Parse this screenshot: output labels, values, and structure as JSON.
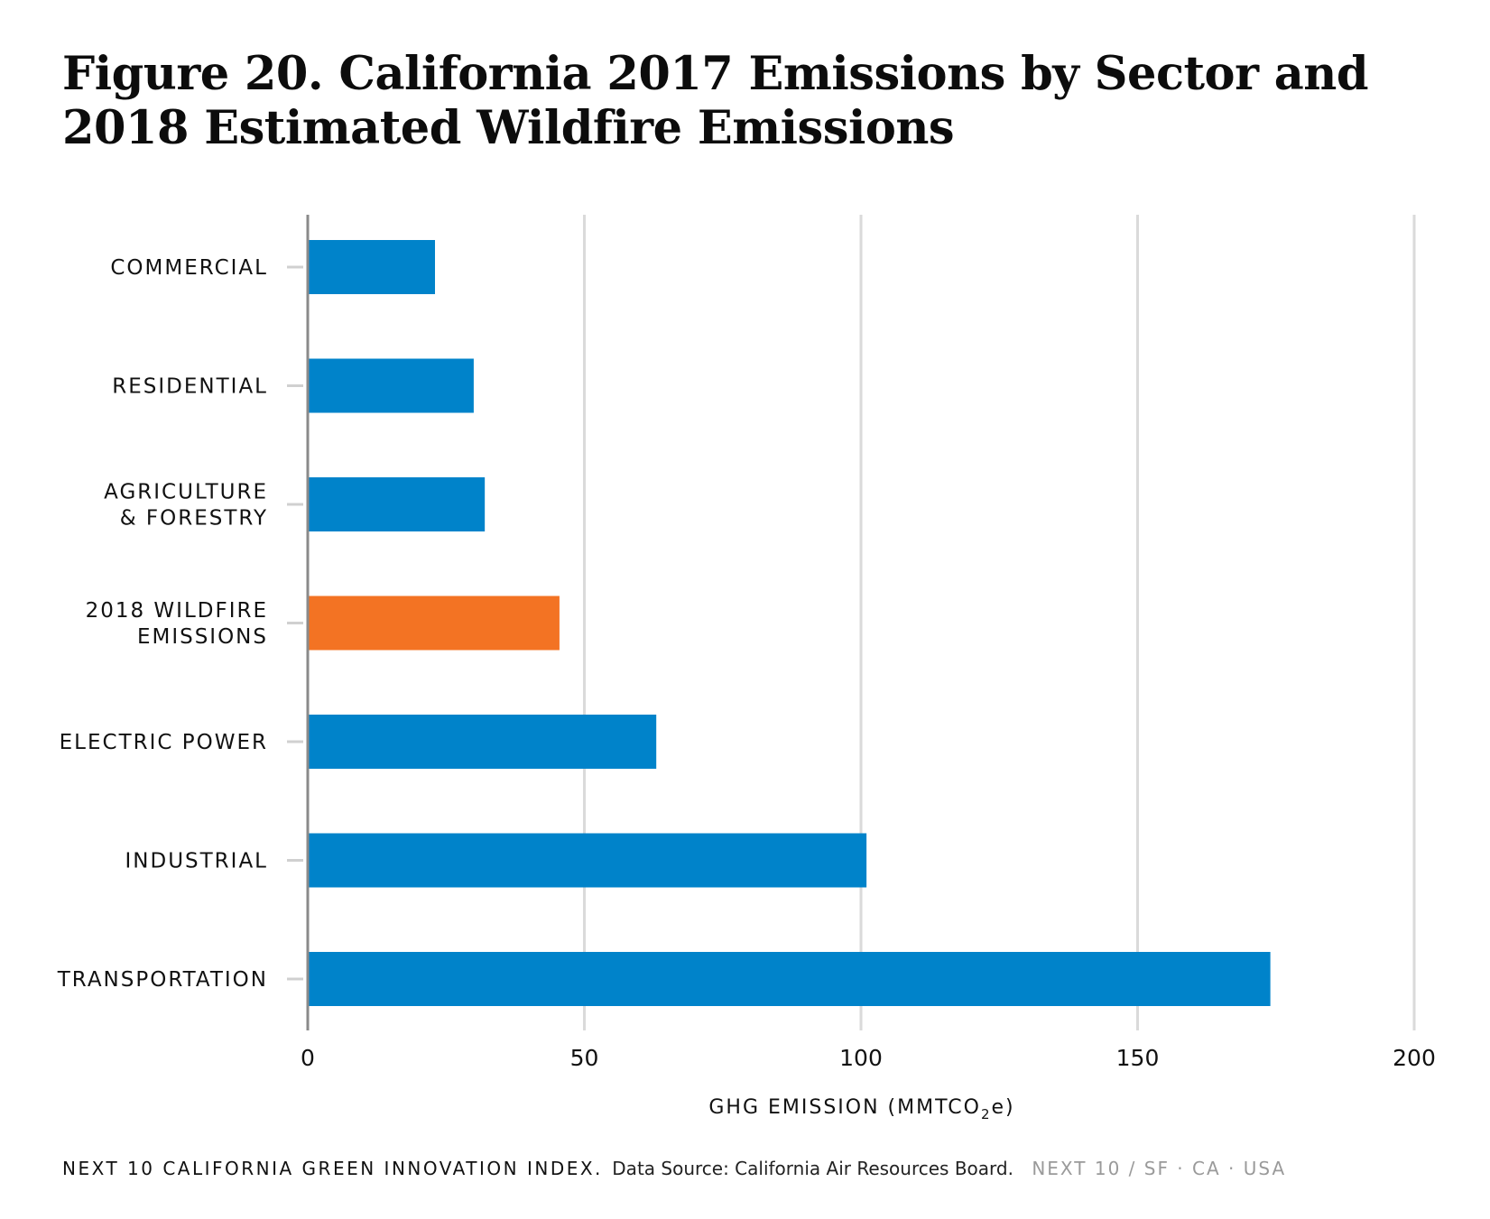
{
  "title": "Figure 20. California 2017 Emissions by Sector and 2018 Estimated Wildfire Emissions",
  "chart_data": {
    "type": "bar",
    "orientation": "horizontal",
    "categories": [
      "COMMERCIAL",
      "RESIDENTIAL",
      "AGRICULTURE\n& FORESTRY",
      "2018 WILDFIRE\nEMISSIONS",
      "ELECTRIC POWER",
      "INDUSTRIAL",
      "TRANSPORTATION"
    ],
    "values": [
      23,
      30,
      32,
      45.5,
      63,
      101,
      174
    ],
    "bar_colors": [
      "#0083ca",
      "#0083ca",
      "#0083ca",
      "#f37323",
      "#0083ca",
      "#0083ca",
      "#0083ca"
    ],
    "xlabel": "GHG EMISSION (MMTCO",
    "xlabel_subscript": "2",
    "xlabel_suffix": "e)",
    "xlim": [
      0,
      200
    ],
    "xticks": [
      0,
      50,
      100,
      150,
      200
    ],
    "grid": "vertical",
    "gridline_color": "#dadada",
    "axis_color": "#8a8a8a"
  },
  "footer": {
    "brand": "NEXT 10 CALIFORNIA GREEN INNOVATION INDEX.",
    "source": "Data Source: California Air Resources Board.",
    "tag": "NEXT 10 / SF · CA · USA"
  }
}
